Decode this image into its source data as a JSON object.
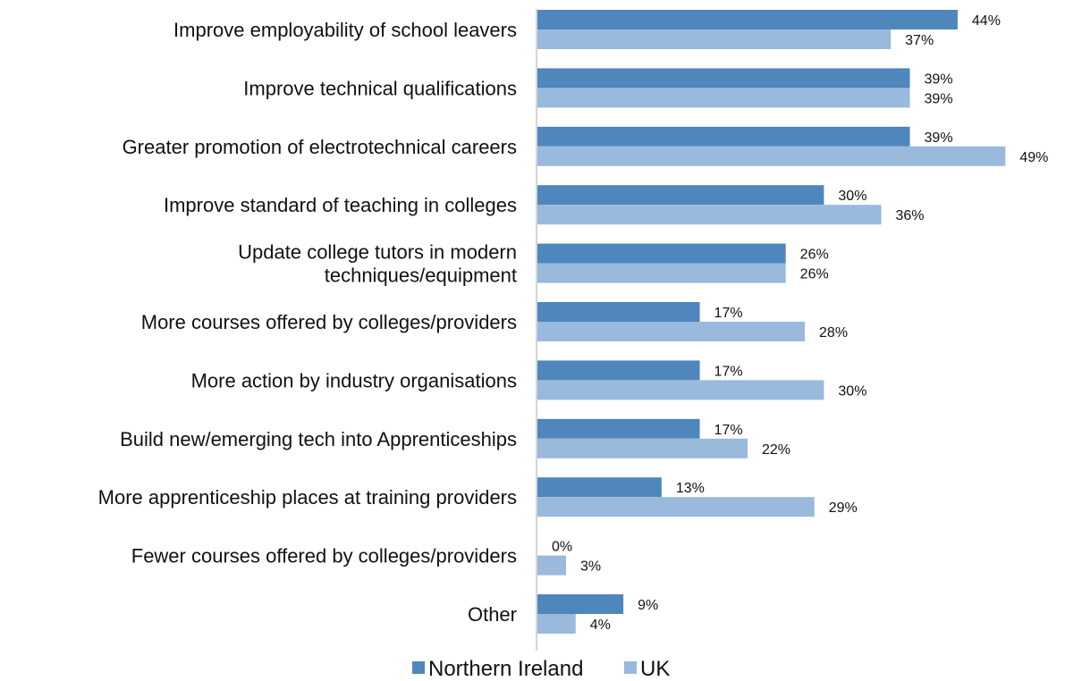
{
  "chart_data": {
    "type": "bar",
    "orientation": "horizontal",
    "categories": [
      "Improve employability of school leavers",
      "Improve technical qualifications",
      "Greater promotion of electrotechnical careers",
      "Improve standard of teaching in colleges",
      "Update college tutors in modern techniques/equipment",
      "More courses offered by colleges/providers",
      "More action by industry organisations",
      "Build new/emerging tech into Apprenticeships",
      "More apprenticeship places at training providers",
      "Fewer courses offered by colleges/providers",
      "Other"
    ],
    "category_lines": [
      [
        "Improve employability of school leavers"
      ],
      [
        "Improve technical qualifications"
      ],
      [
        "Greater promotion of electrotechnical careers"
      ],
      [
        "Improve standard of teaching in colleges"
      ],
      [
        "Update college tutors in modern",
        "techniques/equipment"
      ],
      [
        "More courses offered by colleges/providers"
      ],
      [
        "More action by industry organisations"
      ],
      [
        "Build new/emerging tech into Apprenticeships"
      ],
      [
        "More apprenticeship places at training providers"
      ],
      [
        "Fewer courses offered by colleges/providers"
      ],
      [
        "Other"
      ]
    ],
    "series": [
      {
        "name": "Northern Ireland",
        "color": "#4f86bb",
        "values": [
          44,
          39,
          39,
          30,
          26,
          17,
          17,
          17,
          13,
          0,
          9
        ]
      },
      {
        "name": "UK",
        "color": "#99b9dd",
        "values": [
          37,
          39,
          49,
          36,
          26,
          28,
          30,
          22,
          29,
          3,
          4
        ]
      }
    ],
    "value_suffix": "%",
    "xlim": [
      0,
      50
    ],
    "grid": false,
    "legend_position": "bottom"
  }
}
